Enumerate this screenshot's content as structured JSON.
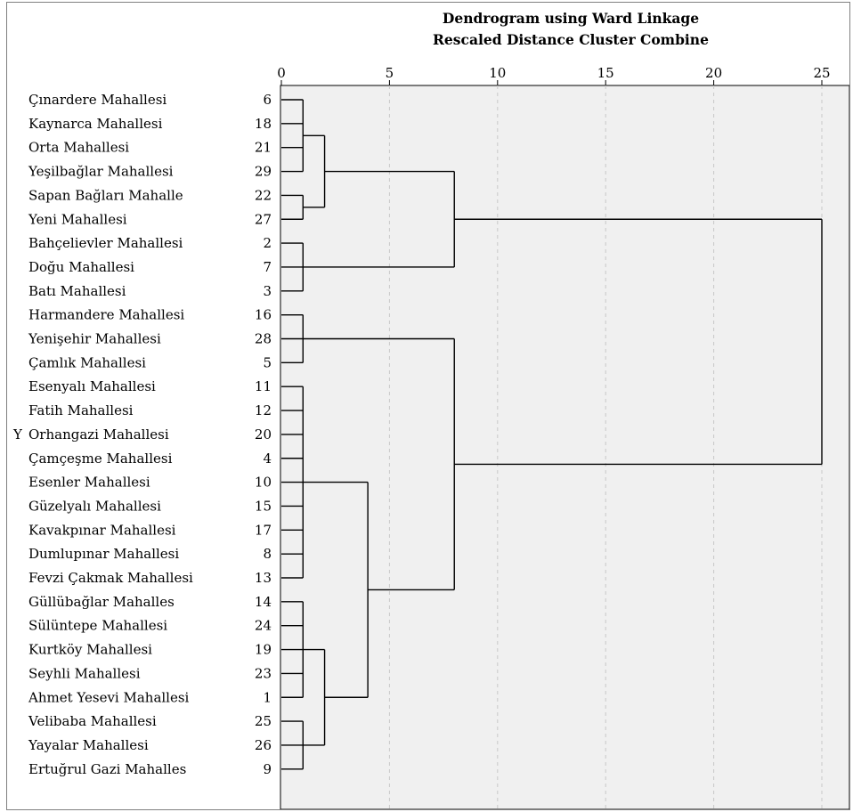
{
  "chart_data": {
    "type": "dendrogram",
    "title": "Dendrogram using Ward Linkage",
    "subtitle": "Rescaled Distance Cluster Combine",
    "case_label_marker": "Y",
    "x_ticks": [
      0,
      5,
      10,
      15,
      20,
      25
    ],
    "xlim": [
      0,
      25
    ],
    "grid": "vertical dashed",
    "leaves": [
      {
        "label": "Çınardere Mahallesi",
        "number": "6"
      },
      {
        "label": "Kaynarca Mahallesi",
        "number": "18"
      },
      {
        "label": "Orta Mahallesi",
        "number": "21"
      },
      {
        "label": "Yeşilbağlar Mahallesi",
        "number": "29"
      },
      {
        "label": "Sapan Bağları Mahalle",
        "number": "22"
      },
      {
        "label": "Yeni Mahallesi",
        "number": "27"
      },
      {
        "label": "Bahçelievler Mahallesi",
        "number": "2"
      },
      {
        "label": "Doğu Mahallesi",
        "number": "7"
      },
      {
        "label": "Batı Mahallesi",
        "number": "3"
      },
      {
        "label": "Harmandere Mahallesi",
        "number": "16"
      },
      {
        "label": "Yenişehir Mahallesi",
        "number": "28"
      },
      {
        "label": "Çamlık Mahallesi",
        "number": "5"
      },
      {
        "label": "Esenyalı Mahallesi",
        "number": "11"
      },
      {
        "label": "Fatih Mahallesi",
        "number": "12"
      },
      {
        "label": "Orhangazi Mahallesi",
        "number": "20"
      },
      {
        "label": "Çamçeşme Mahallesi",
        "number": "4"
      },
      {
        "label": "Esenler Mahallesi",
        "number": "10"
      },
      {
        "label": "Güzelyalı Mahallesi",
        "number": "15"
      },
      {
        "label": "Kavakpınar Mahallesi",
        "number": "17"
      },
      {
        "label": "Dumlupınar Mahallesi",
        "number": "8"
      },
      {
        "label": "Fevzi Çakmak Mahallesi",
        "number": "13"
      },
      {
        "label": "Güllübağlar Mahalles",
        "number": "14"
      },
      {
        "label": "Sülüntepe Mahallesi",
        "number": "24"
      },
      {
        "label": "Kurtköy Mahallesi",
        "number": "19"
      },
      {
        "label": "Seyhli Mahallesi",
        "number": "23"
      },
      {
        "label": "Ahmet Yesevi Mahallesi",
        "number": "1"
      },
      {
        "label": "Velibaba Mahallesi",
        "number": "25"
      },
      {
        "label": "Yayalar Mahallesi",
        "number": "26"
      },
      {
        "label": "Ertuğrul Gazi Mahalles",
        "number": "9"
      }
    ],
    "merges": [
      {
        "id": "A",
        "children": [
          "L0",
          "L1",
          "L2",
          "L3"
        ],
        "distance": 1.0
      },
      {
        "id": "B",
        "children": [
          "L4",
          "L5"
        ],
        "distance": 1.0
      },
      {
        "id": "C",
        "children": [
          "A",
          "B"
        ],
        "distance": 2.0
      },
      {
        "id": "D",
        "children": [
          "L6",
          "L7",
          "L8"
        ],
        "distance": 1.0
      },
      {
        "id": "E",
        "children": [
          "C",
          "D"
        ],
        "distance": 8.0
      },
      {
        "id": "F",
        "children": [
          "L9",
          "L10",
          "L11"
        ],
        "distance": 1.0
      },
      {
        "id": "G",
        "children": [
          "L12",
          "L13",
          "L14",
          "L15",
          "L16",
          "L17",
          "L18",
          "L19",
          "L20"
        ],
        "distance": 1.0
      },
      {
        "id": "H",
        "children": [
          "L21",
          "L22",
          "L23",
          "L24",
          "L25"
        ],
        "distance": 1.0
      },
      {
        "id": "I",
        "children": [
          "L26",
          "L27",
          "L28"
        ],
        "distance": 1.0
      },
      {
        "id": "J",
        "children": [
          "H",
          "I"
        ],
        "distance": 2.0
      },
      {
        "id": "K",
        "children": [
          "G",
          "J"
        ],
        "distance": 4.0
      },
      {
        "id": "M",
        "children": [
          "F",
          "K"
        ],
        "distance": 8.0
      },
      {
        "id": "N",
        "children": [
          "E",
          "M"
        ],
        "distance": 25.0
      }
    ],
    "colors": {
      "plot_background": "#f0f0f0",
      "lines": "#000000",
      "grid": "#c8c8c8"
    }
  }
}
